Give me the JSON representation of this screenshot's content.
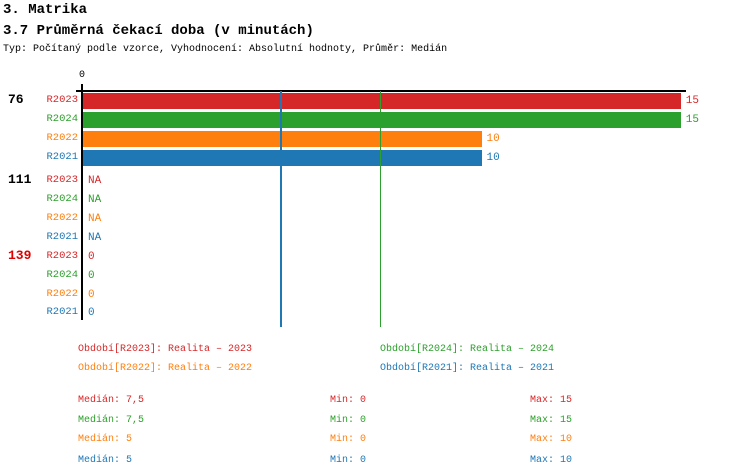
{
  "header": {
    "title": "3. Matrika",
    "subtitle": "3.7 Průměrná čekací doba (v minutách)",
    "meta": "Typ: Počítaný podle vzorce, Vyhodnocení: Absolutní hodnoty, Průměr: Medián"
  },
  "chart_data": {
    "type": "bar",
    "orientation": "horizontal",
    "title": "3.7 Průměrná čekací doba (v minutách)",
    "x_axis": {
      "origin_tick": "0",
      "min": 0,
      "max_shown": 15,
      "grid": false
    },
    "groups": [
      {
        "label": "76",
        "label_color": "#000000"
      },
      {
        "label": "111",
        "label_color": "#000000"
      },
      {
        "label": "139",
        "label_color": "#dd0000"
      }
    ],
    "series": [
      {
        "name": "R2023",
        "color": "#d62728",
        "legend_label": "Období[R2023]: Realita – 2023",
        "values": [
          15,
          null,
          0
        ],
        "displays": [
          "15",
          "NA",
          "0"
        ],
        "stats": {
          "median": "Medián: 7,5",
          "min": "Min: 0",
          "max": "Max: 15"
        }
      },
      {
        "name": "R2024",
        "color": "#2ca02c",
        "legend_label": "Období[R2024]: Realita – 2024",
        "values": [
          15,
          null,
          0
        ],
        "displays": [
          "15",
          "NA",
          "0"
        ],
        "stats": {
          "median": "Medián: 7,5",
          "min": "Min: 0",
          "max": "Max: 15"
        }
      },
      {
        "name": "R2022",
        "color": "#ff7f0e",
        "legend_label": "Období[R2022]: Realita – 2022",
        "values": [
          10,
          null,
          0
        ],
        "displays": [
          "10",
          "NA",
          "0"
        ],
        "stats": {
          "median": "Medián: 5",
          "min": "Min: 0",
          "max": "Max: 10"
        }
      },
      {
        "name": "R2021",
        "color": "#1f77b4",
        "legend_label": "Období[R2021]: Realita – 2021",
        "values": [
          10,
          null,
          0
        ],
        "displays": [
          "10",
          "NA",
          "0"
        ],
        "stats": {
          "median": "Medián: 5",
          "min": "Min: 0",
          "max": "Max: 10"
        }
      }
    ],
    "median_lines": [
      {
        "series": "R2024",
        "value": 7.5,
        "color": "#2ca02c"
      },
      {
        "series": "R2021",
        "value": 5,
        "color": "#1f77b4"
      }
    ]
  }
}
